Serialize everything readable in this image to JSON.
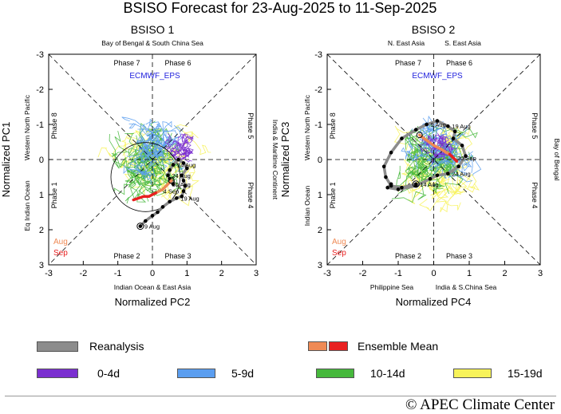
{
  "title": "BSISO Forecast for 23-Aug-2025 to 11-Sep-2025",
  "model": "ECMWF_EPS",
  "colors": {
    "reanalysis": "#8c8c8c",
    "ens_aug": "#ef8a55",
    "ens_sep": "#e82020",
    "d0_4": "#7b2fd0",
    "d5_9": "#5b9ef0",
    "d10_14": "#46b83c",
    "d15_19": "#f7f35a",
    "axis_dash": "#000"
  },
  "chart_data": [
    {
      "type": "phase_diagram",
      "title": "BSISO 1",
      "xlabel": "Normalized PC2",
      "ylabel": "Normalized PC1",
      "xlim": [
        -3,
        3
      ],
      "ylim": [
        -3,
        3
      ],
      "y_inverted": true,
      "xticks": [
        "-3",
        "-2",
        "-1",
        "0",
        "1",
        "2",
        "3"
      ],
      "yticks": [
        "-3",
        "-2",
        "-1",
        "0",
        "1",
        "2",
        "3"
      ],
      "regions": {
        "top": "Bay of Bengal & South China Sea",
        "bottom": "Indian Ocean & East Asia",
        "left_outer": "Eq Indian Ocean",
        "left_inner": "Western North Pacific",
        "right": "India & Maritime Continent"
      },
      "phases": [
        "Phase 7",
        "Phase 6",
        "Phase 8",
        "Phase 5",
        "Phase 1",
        "Phase 4",
        "Phase 2",
        "Phase 3"
      ],
      "month_labels": [
        "Aug",
        "Sep"
      ],
      "reanalysis": {
        "x": [
          -0.35,
          -0.2,
          0.0,
          0.15,
          0.3,
          0.5,
          0.7,
          0.85,
          0.9,
          0.95,
          0.9,
          0.85,
          1.0,
          0.9,
          0.75,
          0.6,
          0.5,
          0.45,
          0.5,
          0.6
        ],
        "y": [
          1.9,
          1.75,
          1.6,
          1.5,
          1.35,
          1.2,
          1.1,
          1.05,
          0.9,
          0.75,
          0.6,
          0.45,
          0.25,
          0.1,
          0.0,
          0.15,
          0.3,
          0.45,
          0.55,
          0.7
        ],
        "labels": [
          {
            "i": 0,
            "text": "9 Aug"
          },
          {
            "i": 6,
            "text": "19 Aug"
          },
          {
            "i": 17,
            "text": "24 Aug"
          },
          {
            "i": 15,
            "text": "14 Aug"
          }
        ]
      },
      "ensemble_mean": {
        "x": [
          0.55,
          0.45,
          0.35,
          0.3,
          0.2,
          0.1,
          0.0,
          -0.1,
          -0.25,
          -0.4,
          -0.55
        ],
        "y": [
          0.6,
          0.7,
          0.8,
          0.85,
          0.9,
          0.95,
          1.0,
          1.05,
          1.05,
          1.1,
          1.15
        ],
        "labels": [
          {
            "i": 4,
            "text": "4 Sep"
          },
          {
            "i": 1,
            "text": "30 Aug"
          }
        ]
      },
      "circle": {
        "cx": -0.2,
        "cy": 0.5,
        "r": 1.0
      }
    },
    {
      "type": "phase_diagram",
      "title": "BSISO 2",
      "xlabel": "Normalized PC4",
      "ylabel": "Normalized PC3",
      "xlim": [
        -3,
        3
      ],
      "ylim": [
        -3,
        3
      ],
      "y_inverted": true,
      "xticks": [
        "-3",
        "-2",
        "-1",
        "0",
        "1",
        "2",
        "3"
      ],
      "yticks": [
        "-3",
        "-2",
        "-1",
        "0",
        "1",
        "2",
        "3"
      ],
      "regions": {
        "top_left": "N. East Asia",
        "top_right": "S. East Asia",
        "bottom_left": "Philippine Sea",
        "bottom_right": "India & S.China Sea",
        "left_outer": "Indian Ocean",
        "left_inner": "Western North Pacific",
        "right": "Bay of Bengal"
      },
      "phases": [
        "Phase 7",
        "Phase 6",
        "Phase 8",
        "Phase 5",
        "Phase 1",
        "Phase 4",
        "Phase 2",
        "Phase 3"
      ],
      "month_labels": [
        "Aug",
        "Sep"
      ],
      "reanalysis": {
        "x": [
          -0.5,
          -0.9,
          -1.2,
          -1.35,
          -1.4,
          -1.2,
          -0.9,
          -0.5,
          -0.2,
          0.1,
          0.4,
          0.6,
          0.55,
          0.8,
          0.9,
          0.7,
          0.4,
          0.1,
          -0.1,
          -0.5,
          -1.0,
          -1.3,
          -1.2
        ],
        "y": [
          0.7,
          0.8,
          0.75,
          0.5,
          0.2,
          -0.2,
          -0.6,
          -0.85,
          -1.0,
          -1.1,
          -0.95,
          -0.8,
          -0.6,
          -0.4,
          -0.1,
          0.2,
          0.4,
          0.45,
          0.55,
          0.75,
          0.85,
          0.8,
          0.7
        ],
        "labels": [
          {
            "i": 0,
            "text": "14 Aug"
          },
          {
            "i": 10,
            "text": "19 Aug"
          },
          {
            "i": 8,
            "text": "9 Aug"
          },
          {
            "i": 16,
            "text": "24 Aug"
          }
        ]
      },
      "ensemble_mean": {
        "x": [
          -0.4,
          -0.2,
          0.0,
          0.2,
          0.35,
          0.45,
          0.5,
          0.55,
          0.6,
          0.65
        ],
        "y": [
          -0.7,
          -0.55,
          -0.4,
          -0.3,
          -0.2,
          -0.15,
          -0.1,
          -0.05,
          0.0,
          0.05
        ],
        "labels": [
          {
            "i": 7,
            "text": "30 Sep"
          }
        ]
      },
      "circle": null
    }
  ],
  "legend": {
    "reanalysis": "Reanalysis",
    "ensemble_mean": "Ensemble Mean",
    "d0_4": "0-4d",
    "d5_9": "5-9d",
    "d10_14": "10-14d",
    "d15_19": "15-19d"
  },
  "credit": "© APEC Climate Center"
}
